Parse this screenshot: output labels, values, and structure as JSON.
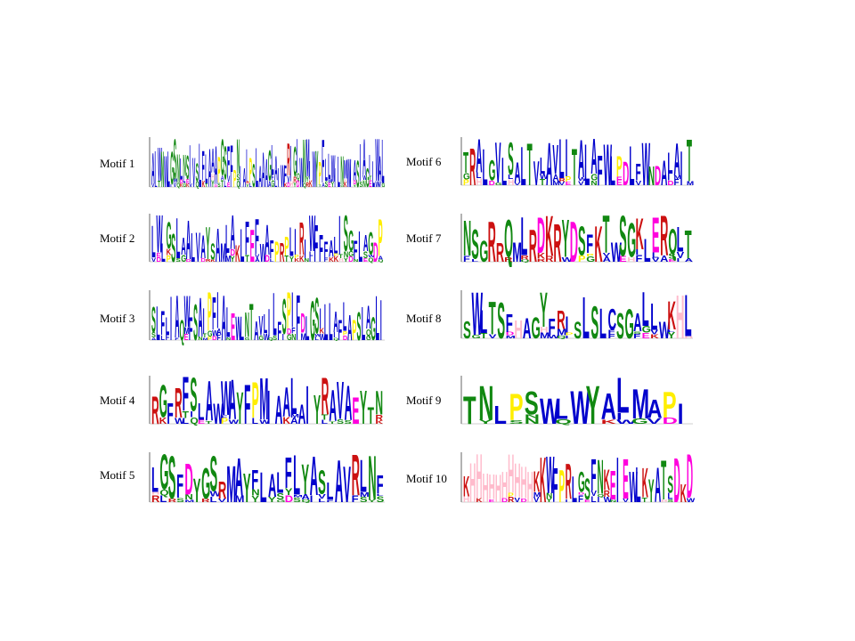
{
  "palette": {
    "blue": "#0000cc",
    "green": "#118811",
    "red": "#cc1111",
    "magenta": "#ff00dd",
    "yellow": "#ffee00",
    "pink": "#ffbbcc",
    "cyan": "#11aadd",
    "black": "#000000"
  },
  "motifs": [
    {
      "label": "Motif 1",
      "sequence": "AIWNWLGSNLNSIVSLFLAAAPGSFFPNIAIPSLAAAGLAIWFRIGIWNMIWYPFLLWILNMWIASIAGILWAL"
    },
    {
      "label": "Motif 2",
      "sequence": "LWLGSLAALVAYSAMLAKLFEFWAFPRPLIRIWFFFALISGFLAGDP"
    },
    {
      "label": "Motif 3",
      "sequence": "SLFLIAQWFSAIPFIALEWLNTAVLILFSPIFDLGSILLAFLAPSLAGLI"
    },
    {
      "label": "Motif 4",
      "sequence": "RGFRFSLAWWAYFPMIAALAIYRAVAEYTN"
    },
    {
      "label": "Motif 5",
      "sequence": "LGSFDYGSRMAYFLALFLYASLAVRLNF"
    },
    {
      "label": "Motif 6",
      "sequence": "TRALGVLSALTVLAVLITALAFWLPDLFWNDALAIT"
    },
    {
      "label": "Motif 7",
      "sequence": "NSGRRQMLRDKRYDSFKTWSGKLERQLT"
    },
    {
      "label": "Motif 8",
      "sequence": "SWLTSFHAGYFRISLSLCSGALLWKHL"
    },
    {
      "label": "Motif 9",
      "sequence": "TNLPSWLWYALMAPI"
    },
    {
      "label": "Motif 10",
      "sequence": "KHHHHHHHHHHKKWFPRLGSFNKEIEWLKYATSDKD"
    }
  ]
}
